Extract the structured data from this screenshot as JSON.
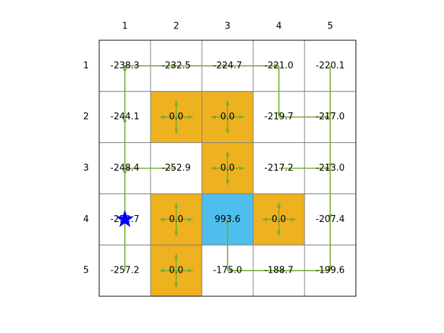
{
  "grid": {
    "col_labels": [
      "1",
      "2",
      "3",
      "4",
      "5"
    ],
    "row_labels": [
      "1",
      "2",
      "3",
      "4",
      "5"
    ],
    "cells": [
      [
        {
          "value": "-238.3",
          "type": "normal"
        },
        {
          "value": "-232.5",
          "type": "normal"
        },
        {
          "value": "-224.7",
          "type": "normal"
        },
        {
          "value": "-221.0",
          "type": "normal"
        },
        {
          "value": "-220.1",
          "type": "normal"
        }
      ],
      [
        {
          "value": "-244.1",
          "type": "normal"
        },
        {
          "value": "0.0",
          "type": "obstacle"
        },
        {
          "value": "0.0",
          "type": "obstacle"
        },
        {
          "value": "-219.7",
          "type": "normal"
        },
        {
          "value": "-217.0",
          "type": "normal"
        }
      ],
      [
        {
          "value": "-248.4",
          "type": "normal"
        },
        {
          "value": "-252.9",
          "type": "normal"
        },
        {
          "value": "0.0",
          "type": "obstacle"
        },
        {
          "value": "-217.2",
          "type": "normal"
        },
        {
          "value": "-213.0",
          "type": "normal"
        }
      ],
      [
        {
          "value": "-252.7",
          "type": "normal"
        },
        {
          "value": "0.0",
          "type": "obstacle"
        },
        {
          "value": "993.6",
          "type": "goal"
        },
        {
          "value": "0.0",
          "type": "obstacle"
        },
        {
          "value": "-207.4",
          "type": "normal"
        }
      ],
      [
        {
          "value": "-257.2",
          "type": "normal"
        },
        {
          "value": "0.0",
          "type": "obstacle"
        },
        {
          "value": "-175.0",
          "type": "normal"
        },
        {
          "value": "-188.7",
          "type": "normal"
        },
        {
          "value": "-199.6",
          "type": "normal"
        }
      ]
    ],
    "policy": [
      [
        "right",
        "right",
        "right",
        "down",
        "down"
      ],
      [
        "up",
        "all",
        "all",
        "right",
        "down"
      ],
      [
        "up",
        "left",
        "all",
        "right",
        "down"
      ],
      [
        "up",
        "all",
        "none",
        "all",
        "down"
      ],
      [
        "up",
        "all",
        "up",
        "left",
        "left"
      ]
    ],
    "agent": {
      "row": 4,
      "col": 1,
      "icon": "star-icon"
    }
  },
  "colors": {
    "obstacle": "#EEB11F",
    "goal": "#4EBEED",
    "normal": "#FFFFFF",
    "grid_line": "#808080",
    "arrow": "#77AC30",
    "agent": "#0000FF"
  }
}
